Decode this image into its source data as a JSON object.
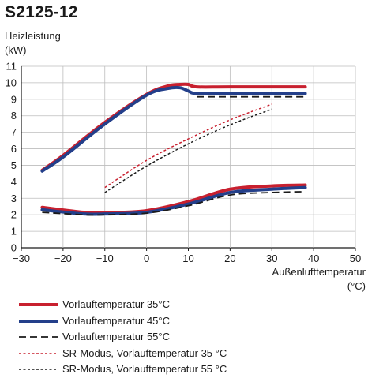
{
  "title": "S2125-12",
  "chart_data": {
    "type": "line",
    "ylabel_line1": "Heizleistung",
    "ylabel_line2": "(kW)",
    "xlabel_line1": "Außenlufttemperatur",
    "xlabel_line2": "(°C)",
    "xlim": [
      -30,
      50
    ],
    "ylim": [
      0,
      11
    ],
    "xticks": [
      -30,
      -20,
      -10,
      0,
      10,
      20,
      30,
      40,
      50
    ],
    "yticks": [
      0,
      1,
      2,
      3,
      4,
      5,
      6,
      7,
      8,
      9,
      10,
      11
    ],
    "grid": true,
    "legend_position": "bottom",
    "series": [
      {
        "name": "Vorlauftemperatur 35°C",
        "color": "#c8202f",
        "style": "solid-thick",
        "upper": [
          [
            -25,
            4.7
          ],
          [
            -20,
            5.6
          ],
          [
            -10,
            7.6
          ],
          [
            0,
            9.3
          ],
          [
            5,
            9.8
          ],
          [
            8,
            9.9
          ],
          [
            10,
            9.9
          ],
          [
            12,
            9.75
          ],
          [
            20,
            9.75
          ],
          [
            38,
            9.75
          ]
        ],
        "lower": [
          [
            -25,
            2.45
          ],
          [
            -15,
            2.15
          ],
          [
            -10,
            2.12
          ],
          [
            0,
            2.25
          ],
          [
            10,
            2.8
          ],
          [
            20,
            3.55
          ],
          [
            30,
            3.75
          ],
          [
            38,
            3.8
          ]
        ]
      },
      {
        "name": "Vorlauftemperatur 45°C",
        "color": "#233f8a",
        "style": "solid-thick",
        "upper": [
          [
            -25,
            4.65
          ],
          [
            -20,
            5.5
          ],
          [
            -10,
            7.5
          ],
          [
            0,
            9.25
          ],
          [
            5,
            9.65
          ],
          [
            8,
            9.7
          ],
          [
            10,
            9.5
          ],
          [
            12,
            9.35
          ],
          [
            20,
            9.35
          ],
          [
            38,
            9.35
          ]
        ],
        "lower": [
          [
            -25,
            2.3
          ],
          [
            -15,
            2.05
          ],
          [
            -10,
            2.05
          ],
          [
            0,
            2.15
          ],
          [
            10,
            2.65
          ],
          [
            20,
            3.35
          ],
          [
            30,
            3.55
          ],
          [
            38,
            3.65
          ]
        ]
      },
      {
        "name": "Vorlauftemperatur 55°C",
        "color": "#1a1a1a",
        "style": "dashed",
        "upper": [
          [
            12,
            9.15
          ],
          [
            20,
            9.15
          ],
          [
            38,
            9.15
          ]
        ],
        "lower": [
          [
            -25,
            2.15
          ],
          [
            -15,
            2.0
          ],
          [
            -10,
            2.0
          ],
          [
            0,
            2.1
          ],
          [
            10,
            2.55
          ],
          [
            20,
            3.2
          ],
          [
            30,
            3.35
          ],
          [
            38,
            3.4
          ]
        ]
      },
      {
        "name": "SR-Modus, Vorlauftemperatur 35 °C",
        "color": "#c8202f",
        "style": "dotted",
        "upper": [
          [
            -10,
            3.65
          ],
          [
            0,
            5.3
          ],
          [
            10,
            6.6
          ],
          [
            20,
            7.75
          ],
          [
            30,
            8.7
          ]
        ],
        "lower": []
      },
      {
        "name": "SR-Modus, Vorlauftemperatur 55 °C",
        "color": "#1a1a1a",
        "style": "dotted",
        "upper": [
          [
            -10,
            3.35
          ],
          [
            0,
            4.95
          ],
          [
            10,
            6.3
          ],
          [
            20,
            7.45
          ],
          [
            30,
            8.4
          ]
        ],
        "lower": []
      }
    ]
  }
}
